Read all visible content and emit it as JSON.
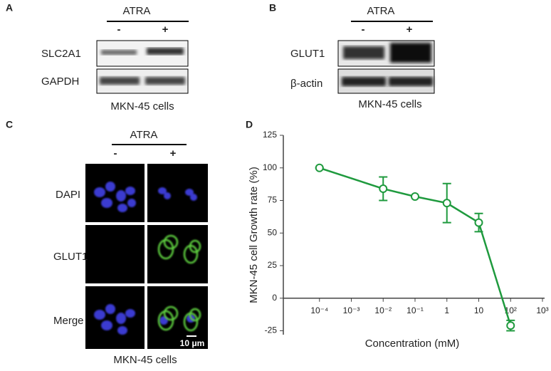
{
  "panels": {
    "a": {
      "letter": "A",
      "treatment": "ATRA",
      "minus": "-",
      "plus": "+",
      "rows": [
        "SLC2A1",
        "GAPDH"
      ],
      "caption": "MKN-45 cells"
    },
    "b": {
      "letter": "B",
      "treatment": "ATRA",
      "minus": "-",
      "plus": "+",
      "rows": [
        "GLUT1",
        "β-actin"
      ],
      "caption": "MKN-45 cells"
    },
    "c": {
      "letter": "C",
      "treatment": "ATRA",
      "minus": "-",
      "plus": "+",
      "rows": [
        "DAPI",
        "GLUT1",
        "Merge"
      ],
      "scale_bar": "10 μm",
      "caption": "MKN-45 cells"
    }
  },
  "chart_data": {
    "type": "line",
    "panel_letter": "D",
    "xlabel": "Concentration (mM)",
    "ylabel": "MKN-45 cell Growth rate (%)",
    "x": [
      0.0001,
      0.01,
      0.1,
      1,
      10,
      100
    ],
    "values": [
      100,
      84,
      78,
      73,
      58,
      -21
    ],
    "errors": [
      0,
      9,
      0,
      15,
      7,
      4
    ],
    "color": "#1f9a3e",
    "xscale": "log",
    "xlim": [
      1e-05,
      1000
    ],
    "xticks": [
      {
        "value": 0.0001,
        "label": "10⁻⁴"
      },
      {
        "value": 0.001,
        "label": "10⁻³"
      },
      {
        "value": 0.01,
        "label": "10⁻²"
      },
      {
        "value": 0.1,
        "label": "10⁻¹"
      },
      1,
      10,
      {
        "value": 100,
        "label": "10²"
      },
      {
        "value": 1000,
        "label": "10³"
      }
    ],
    "ylim": [
      -28,
      125
    ],
    "yticks": [
      -25,
      0,
      25,
      50,
      75,
      100,
      125
    ]
  }
}
